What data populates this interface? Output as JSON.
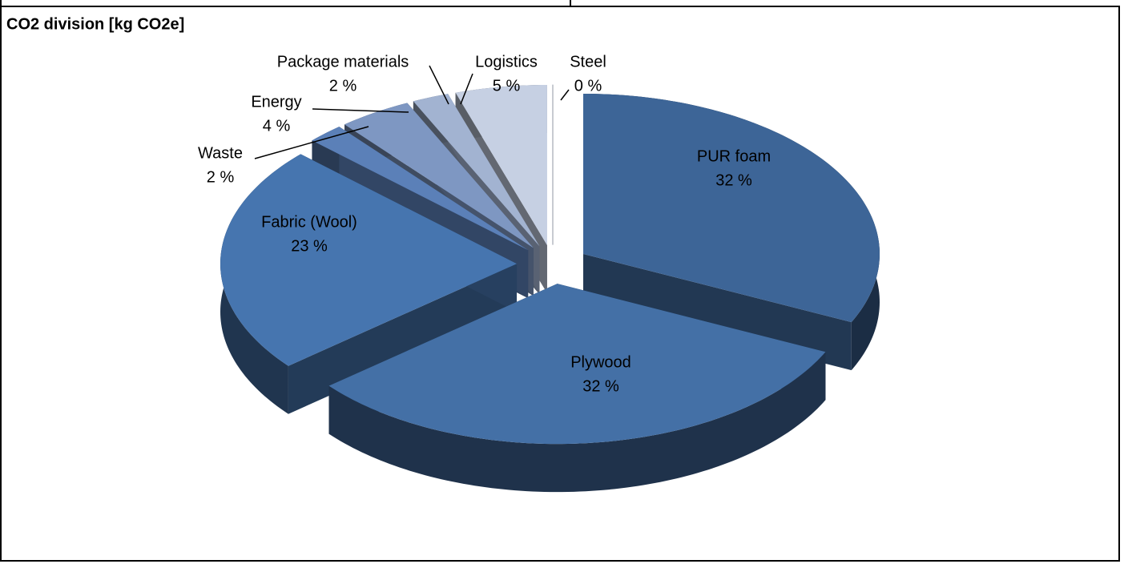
{
  "chart_data": {
    "type": "pie",
    "title": "CO2 division [kg CO2e]",
    "categories": [
      "PUR foam",
      "Plywood",
      "Fabric (Wool)",
      "Waste",
      "Energy",
      "Package materials",
      "Logistics",
      "Steel"
    ],
    "values": [
      32,
      32,
      23,
      2,
      4,
      2,
      5,
      0
    ],
    "value_labels": [
      "32 %",
      "32 %",
      "23 %",
      "2 %",
      "4 %",
      "2 %",
      "5 %",
      "0 %"
    ],
    "colors": [
      "#3d6597",
      "#4470a6",
      "#4675af",
      "#5b80b8",
      "#7e97c2",
      "#a2b3d1",
      "#c6d0e3",
      "#e4e9f2"
    ]
  }
}
